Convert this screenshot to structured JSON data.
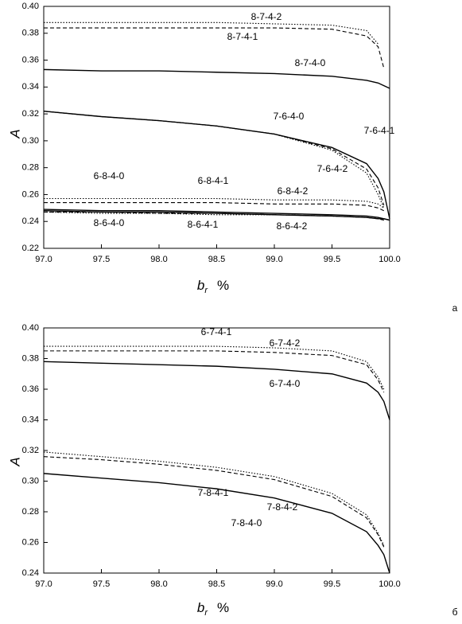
{
  "chart_data": [
    {
      "type": "line",
      "panel_label": "а",
      "xlabel": "b",
      "xlabel_subscript": "r",
      "xlabel_unit": "%",
      "ylabel": "A",
      "xlim": [
        97,
        100
      ],
      "ylim": [
        0.22,
        0.4
      ],
      "xticks": [
        {
          "value": 97,
          "label": "97.0"
        },
        97.5,
        {
          "value": 98,
          "label": "98.0"
        },
        98.5,
        {
          "value": 99,
          "label": "99.0"
        },
        99.5,
        {
          "value": 100,
          "label": "100.0"
        }
      ],
      "yticks": [
        0.22,
        0.24,
        0.26,
        0.28,
        {
          "value": 0.3,
          "label": "0.30"
        },
        0.32,
        0.34,
        0.36,
        0.38,
        {
          "value": 0.4,
          "label": "0.40"
        }
      ],
      "x": [
        97,
        97.5,
        98,
        98.5,
        99,
        99.5,
        99.8,
        99.9,
        99.95,
        100
      ],
      "series": [
        {
          "name": "8-7-4-2",
          "color": "#000000",
          "style": "dotted",
          "values": [
            0.388,
            0.388,
            0.388,
            0.388,
            0.387,
            0.386,
            0.382,
            0.372,
            null,
            null
          ]
        },
        {
          "name": "8-7-4-1",
          "color": "#000000",
          "style": "dashed",
          "values": [
            0.384,
            0.384,
            0.384,
            0.384,
            0.384,
            0.383,
            0.378,
            0.37,
            0.354,
            null
          ]
        },
        {
          "name": "8-7-4-0",
          "color": "#000000",
          "style": "solid",
          "values": [
            0.353,
            0.352,
            0.352,
            0.351,
            0.35,
            0.348,
            0.345,
            0.343,
            0.341,
            0.339
          ]
        },
        {
          "name": "7-6-4-0",
          "color": "#000000",
          "style": "solid",
          "values": [
            0.322,
            0.318,
            0.315,
            0.311,
            0.305,
            0.295,
            0.283,
            0.272,
            0.262,
            0.242
          ]
        },
        {
          "name": "7-6-4-1",
          "color": "#000000",
          "style": "dashed",
          "values": [
            0.322,
            0.318,
            0.315,
            0.311,
            0.305,
            0.294,
            0.279,
            0.265,
            0.252,
            null
          ]
        },
        {
          "name": "7-6-4-2",
          "color": "#000000",
          "style": "dotted",
          "values": [
            0.322,
            0.318,
            0.315,
            0.311,
            0.305,
            0.293,
            0.276,
            0.26,
            0.25,
            null
          ]
        },
        {
          "name": "6-8-4-2",
          "color": "#000000",
          "style": "dotted",
          "values": [
            0.257,
            0.257,
            0.257,
            0.257,
            0.256,
            0.256,
            0.255,
            0.253,
            0.25,
            null
          ]
        },
        {
          "name": "6-8-4-1",
          "color": "#000000",
          "style": "dashed",
          "values": [
            0.254,
            0.254,
            0.254,
            0.254,
            0.253,
            0.253,
            0.252,
            0.25,
            0.248,
            null
          ]
        },
        {
          "name": "6-8-4-0",
          "color": "#000000",
          "style": "solid",
          "values": [
            0.249,
            0.248,
            0.248,
            0.247,
            0.246,
            0.245,
            0.244,
            0.243,
            0.242,
            0.241
          ]
        },
        {
          "name": "8-6-4-0",
          "color": "#000000",
          "style": "solid",
          "values": [
            0.248,
            0.247,
            0.247,
            0.246,
            0.245,
            0.244,
            0.243,
            0.242,
            0.242,
            0.241
          ]
        },
        {
          "name": "8-6-4-1",
          "color": "#000000",
          "style": "dashed",
          "values": [
            0.247,
            0.247,
            0.246,
            0.246,
            0.245,
            0.244,
            0.243,
            0.242,
            0.241,
            null
          ]
        },
        {
          "name": "8-6-4-2",
          "color": "#000000",
          "style": "dotted",
          "values": [
            0.247,
            0.246,
            0.246,
            0.245,
            0.245,
            0.244,
            0.243,
            0.242,
            0.241,
            null
          ]
        }
      ]
    },
    {
      "type": "line",
      "panel_label": "б",
      "xlabel": "b",
      "xlabel_subscript": "r",
      "xlabel_unit": "%",
      "ylabel": "A",
      "xlim": [
        97,
        100
      ],
      "ylim": [
        0.24,
        0.4
      ],
      "xticks": [
        {
          "value": 97,
          "label": "97.0"
        },
        97.5,
        {
          "value": 98,
          "label": "98.0"
        },
        98.5,
        {
          "value": 99,
          "label": "99.0"
        },
        99.5,
        {
          "value": 100,
          "label": "100.0"
        }
      ],
      "yticks": [
        0.24,
        0.26,
        0.28,
        {
          "value": 0.3,
          "label": "0.30"
        },
        0.32,
        0.34,
        0.36,
        0.38,
        {
          "value": 0.4,
          "label": "0.40"
        }
      ],
      "x": [
        97,
        97.5,
        98,
        98.5,
        99,
        99.5,
        99.8,
        99.9,
        99.95,
        100
      ],
      "series": [
        {
          "name": "6-7-4-1",
          "color": "#000000",
          "style": "dotted",
          "values": [
            0.388,
            0.388,
            0.388,
            0.388,
            0.387,
            0.385,
            0.378,
            0.368,
            0.36,
            null
          ]
        },
        {
          "name": "6-7-4-2",
          "color": "#000000",
          "style": "dashed",
          "values": [
            0.385,
            0.385,
            0.385,
            0.385,
            0.384,
            0.382,
            0.376,
            0.366,
            0.358,
            null
          ]
        },
        {
          "name": "6-7-4-0",
          "color": "#000000",
          "style": "solid",
          "values": [
            0.378,
            0.377,
            0.376,
            0.375,
            0.373,
            0.37,
            0.364,
            0.358,
            0.352,
            0.34
          ]
        },
        {
          "name": "7-8-4-1",
          "color": "#000000",
          "style": "dotted",
          "values": [
            0.319,
            0.316,
            0.313,
            0.309,
            0.303,
            0.292,
            0.278,
            0.266,
            0.258,
            null
          ]
        },
        {
          "name": "7-8-4-2",
          "color": "#000000",
          "style": "dashed",
          "values": [
            0.316,
            0.314,
            0.311,
            0.307,
            0.301,
            0.29,
            0.276,
            0.265,
            0.257,
            null
          ]
        },
        {
          "name": "7-8-4-0",
          "color": "#000000",
          "style": "solid",
          "values": [
            0.305,
            0.302,
            0.299,
            0.295,
            0.289,
            0.279,
            0.267,
            0.258,
            0.252,
            0.24
          ]
        }
      ]
    }
  ]
}
